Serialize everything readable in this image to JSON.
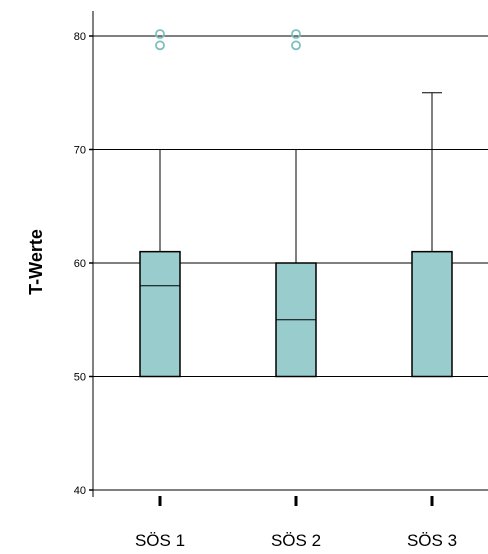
{
  "chart_data": {
    "type": "boxplot",
    "title": "",
    "xlabel": "",
    "ylabel": "T-Werte",
    "ylim": [
      39,
      82
    ],
    "yticks": [
      40,
      50,
      60,
      70,
      80
    ],
    "grid": "horizontal major gridlines",
    "categories": [
      "SÖS 1",
      "SÖS 2",
      "SÖS 3"
    ],
    "boxes": [
      {
        "whisker_low": 50,
        "q1": 50,
        "median": 58,
        "q3": 61,
        "whisker_high": 70,
        "outliers": [
          79,
          80
        ]
      },
      {
        "whisker_low": 50,
        "q1": 50,
        "median": 55,
        "q3": 60,
        "whisker_high": 70,
        "outliers": [
          79,
          80
        ]
      },
      {
        "whisker_low": 50,
        "q1": 50,
        "median": 50,
        "q3": 61,
        "whisker_high": 75,
        "outliers": []
      }
    ],
    "colors": {
      "box_fill": "#99cccc",
      "outlier_stroke": "#7ebfbf",
      "line": "#000000"
    }
  }
}
